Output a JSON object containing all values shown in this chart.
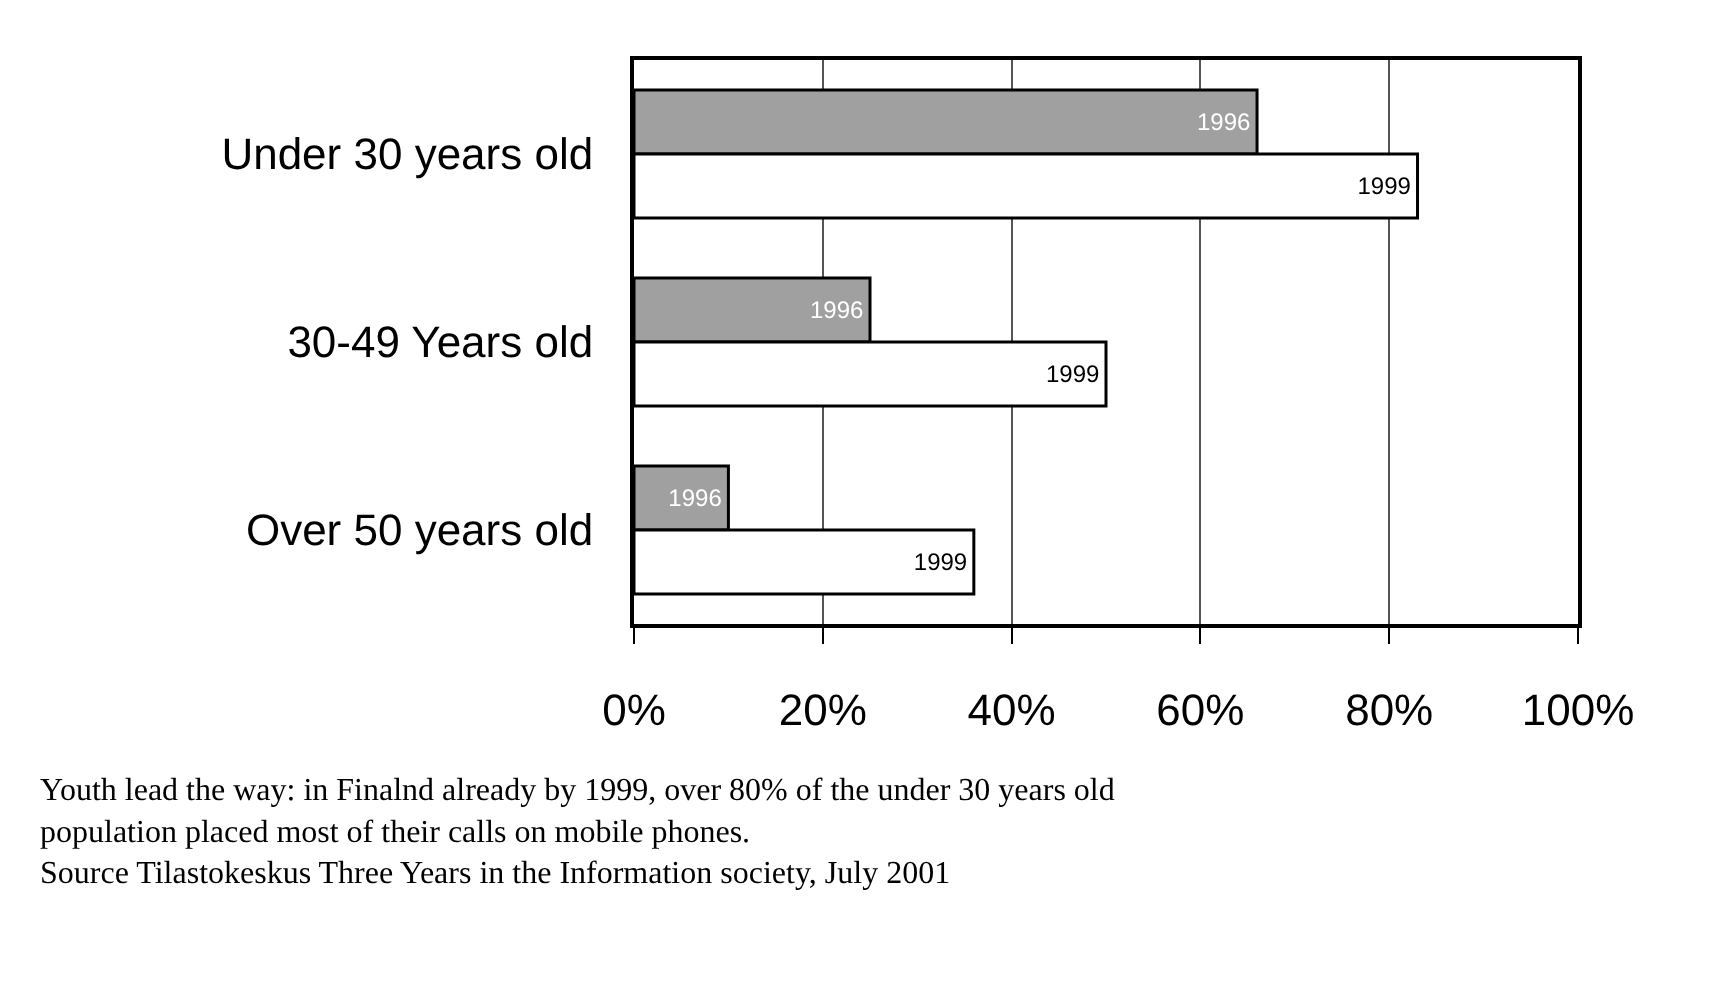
{
  "chart_data": {
    "type": "bar",
    "orientation": "horizontal",
    "categories": [
      "Under 30 years old",
      "30-49 Years old",
      "Over 50 years old"
    ],
    "series": [
      {
        "name": "1996",
        "color": "#a0a0a0",
        "values": [
          66,
          25,
          10
        ]
      },
      {
        "name": "1999",
        "color": "#ffffff",
        "values": [
          83,
          50,
          36
        ]
      }
    ],
    "xlim": [
      0,
      100
    ],
    "xticks": [
      {
        "value": 0,
        "label": "0%"
      },
      {
        "value": 20,
        "label": "20%"
      },
      {
        "value": 40,
        "label": "40%"
      },
      {
        "value": 60,
        "label": "60%"
      },
      {
        "value": 80,
        "label": "80%"
      },
      {
        "value": 100,
        "label": "100%"
      }
    ],
    "grid": "x",
    "legend": false,
    "annotations": [
      "Youth lead the way: in Finalnd already by 1999, over 80% of the under 30 years old population placed most of their calls on mobile phones.",
      "Source Tilastokeskus Three Years in the Information society, July 2001"
    ]
  }
}
